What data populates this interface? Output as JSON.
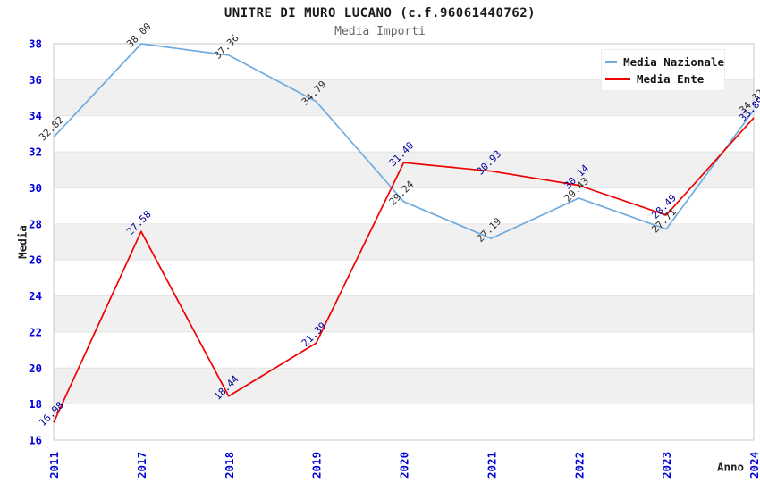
{
  "chart_data": {
    "type": "line",
    "title": "UNITRE DI MURO LUCANO (c.f.96061440762)",
    "subtitle": "Media Importi",
    "xlabel": "Anno",
    "ylabel": "Media",
    "x": [
      "2011",
      "2017",
      "2018",
      "2019",
      "2020",
      "2021",
      "2022",
      "2023",
      "2024"
    ],
    "series": [
      {
        "name": "Media Nazionale",
        "color": "#6fabdf",
        "label_color": "#2a2a2a",
        "values": [
          32.82,
          38.0,
          37.36,
          34.79,
          29.24,
          27.19,
          29.43,
          27.71,
          34.32
        ]
      },
      {
        "name": "Media Ente",
        "color": "#ee0000",
        "label_color": "#000099",
        "values": [
          16.98,
          27.58,
          18.44,
          21.39,
          31.4,
          30.93,
          30.14,
          28.49,
          33.89
        ]
      }
    ],
    "ylim": [
      16,
      38
    ],
    "yticks": [
      16,
      18,
      20,
      22,
      24,
      26,
      28,
      30,
      32,
      34,
      36,
      38
    ],
    "grid": "alternating-horizontal-bands",
    "legend_position": "top-right",
    "colors": {
      "tick_label": "#0000dd",
      "band": "#f0f0f0",
      "band_edge": "#e4e4e4",
      "border": "#c9c9c9"
    }
  }
}
